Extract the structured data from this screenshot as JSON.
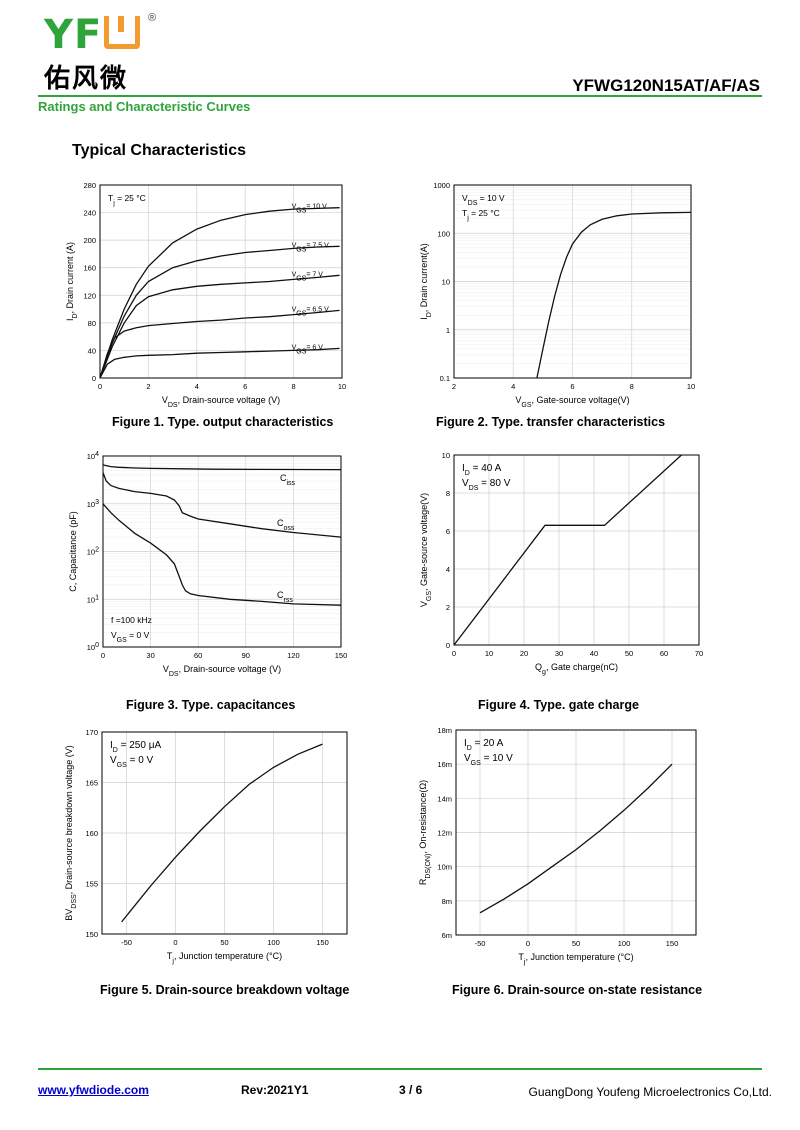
{
  "header": {
    "logo_text": "YFW",
    "logo_cn": "佑风微",
    "registered": "®",
    "part_number": "YFWG120N15AT/AF/AS",
    "subtitle": "Ratings and Characteristic Curves",
    "section_title": "Typical Characteristics"
  },
  "colors": {
    "brand_green": "#2fa43a",
    "brand_orange": "#f29a2e",
    "link_blue": "#0000cc"
  },
  "captions": {
    "fig1": "Figure 1. Type. output characteristics",
    "fig2": "Figure 2. Type. transfer characteristics",
    "fig3": "Figure 3. Type. capacitances",
    "fig4": "Figure 4. Type. gate charge",
    "fig5": "Figure 5. Drain-source breakdown voltage",
    "fig6": "Figure 6. Drain-source on-state resistance"
  },
  "footer": {
    "url": "www.yfwdiode.com",
    "rev": "Rev:2021Y1",
    "page": "3 / 6",
    "company": "GuangDong Youfeng Microelectronics Co,Ltd."
  },
  "chart_data": [
    {
      "id": "fig1",
      "type": "line",
      "xlabel": "V_DS, Drain-source voltage (V)",
      "ylabel": "I_D, Drain current (A)",
      "xlim": [
        0,
        10
      ],
      "ylim": [
        0,
        280
      ],
      "xticks": [
        "0",
        "2",
        "4",
        "6",
        "8",
        "10"
      ],
      "yticks": [
        "0",
        "40",
        "80",
        "120",
        "160",
        "200",
        "240",
        "280"
      ],
      "annotation": "Tj = 25 °C",
      "series": [
        {
          "name": "VGS= 10 V",
          "x": [
            0,
            0.5,
            1,
            1.5,
            2,
            3,
            4,
            5,
            6,
            7,
            8,
            9,
            9.9
          ],
          "y": [
            0,
            55,
            100,
            136,
            162,
            196,
            216,
            229,
            237,
            242,
            245,
            246,
            247
          ]
        },
        {
          "name": "VGS= 7.5 V",
          "x": [
            0,
            0.5,
            1,
            1.5,
            2,
            3,
            4,
            5,
            6,
            7,
            8,
            9,
            9.9
          ],
          "y": [
            0,
            50,
            90,
            120,
            140,
            160,
            170,
            177,
            182,
            185,
            188,
            190,
            191
          ]
        },
        {
          "name": "VGS= 7 V",
          "x": [
            0,
            0.5,
            1,
            1.5,
            2,
            3,
            4,
            5,
            6,
            7,
            8,
            9,
            9.9
          ],
          "y": [
            0,
            45,
            80,
            105,
            118,
            128,
            133,
            136,
            138,
            140,
            143,
            146,
            149
          ]
        },
        {
          "name": "VGS= 6.5 V",
          "x": [
            0,
            0.3,
            0.6,
            1,
            1.5,
            2,
            3,
            4,
            5,
            6,
            7,
            8,
            9,
            9.9
          ],
          "y": [
            0,
            35,
            58,
            68,
            73,
            76,
            79,
            82,
            84,
            87,
            89,
            92,
            95,
            98
          ]
        },
        {
          "name": "VGS= 6 V",
          "x": [
            0,
            0.3,
            0.6,
            1,
            1.5,
            2,
            3,
            4,
            5,
            6,
            7,
            8,
            9,
            9.9
          ],
          "y": [
            0,
            20,
            27,
            30,
            32,
            33,
            34,
            36,
            37,
            38,
            39,
            40,
            41,
            43
          ]
        }
      ]
    },
    {
      "id": "fig2",
      "type": "line",
      "yscale": "log",
      "xlabel": "V_GS, Gate-source voltage(V)",
      "ylabel": "I_D, Drain current(A)",
      "xlim": [
        2,
        10
      ],
      "ylim": [
        0.1,
        1000
      ],
      "xticks": [
        "2",
        "4",
        "6",
        "8",
        "10"
      ],
      "yticks": [
        "0.1",
        "1",
        "10",
        "100",
        "1000"
      ],
      "annotation": [
        "VDS = 10 V",
        "Tj = 25 °C"
      ],
      "series": [
        {
          "name": "",
          "x": [
            4.8,
            4.9,
            5,
            5.2,
            5.4,
            5.6,
            5.8,
            6,
            6.3,
            6.6,
            7,
            7.5,
            8,
            9,
            10
          ],
          "y": [
            0.1,
            0.2,
            0.4,
            1.5,
            5,
            14,
            32,
            60,
            105,
            150,
            195,
            230,
            250,
            265,
            270
          ]
        }
      ]
    },
    {
      "id": "fig3",
      "type": "line",
      "yscale": "log",
      "xlabel": "V_DS, Drain-source voltage (V)",
      "ylabel": "C, Capacitance (pF)",
      "xlim": [
        0,
        150
      ],
      "ylim": [
        1,
        10000
      ],
      "xticks": [
        "0",
        "30",
        "60",
        "90",
        "120",
        "150"
      ],
      "yticks": [
        "10^0",
        "10^1",
        "10^2",
        "10^3",
        "10^4"
      ],
      "annotation": [
        "f =100 kHz",
        "VGS = 0 V"
      ],
      "series": [
        {
          "name": "Ciss",
          "x": [
            0,
            5,
            10,
            20,
            30,
            50,
            70,
            100,
            150
          ],
          "y": [
            6500,
            6000,
            5800,
            5600,
            5500,
            5400,
            5300,
            5250,
            5200
          ]
        },
        {
          "name": "Coss",
          "x": [
            0,
            2,
            5,
            10,
            20,
            30,
            40,
            45,
            48,
            50,
            55,
            60,
            80,
            100,
            120,
            150
          ],
          "y": [
            4500,
            3000,
            2400,
            2100,
            1800,
            1650,
            1450,
            1200,
            900,
            650,
            550,
            480,
            380,
            300,
            250,
            200
          ]
        },
        {
          "name": "Crss",
          "x": [
            0,
            5,
            10,
            15,
            20,
            30,
            40,
            45,
            48,
            50,
            52,
            55,
            60,
            80,
            100,
            120,
            150
          ],
          "y": [
            1000,
            650,
            450,
            330,
            240,
            150,
            85,
            55,
            30,
            20,
            15,
            13,
            12,
            10,
            9,
            8,
            7.5
          ]
        }
      ]
    },
    {
      "id": "fig4",
      "type": "line",
      "xlabel": "Q_g, Gate charge(nC)",
      "ylabel": "V_GS, Gate-source voltage(V)",
      "xlim": [
        0,
        70
      ],
      "ylim": [
        0,
        10
      ],
      "xticks": [
        "0",
        "10",
        "20",
        "30",
        "40",
        "50",
        "60",
        "70"
      ],
      "yticks": [
        "0",
        "2",
        "4",
        "6",
        "8",
        "10"
      ],
      "annotation": [
        "ID = 40 A",
        "VDS = 80 V"
      ],
      "series": [
        {
          "name": "",
          "x": [
            0,
            26,
            43,
            65
          ],
          "y": [
            0,
            6.3,
            6.3,
            10
          ]
        }
      ]
    },
    {
      "id": "fig5",
      "type": "line",
      "xlabel": "T_j, Junction temperature (°C)",
      "ylabel": "BV_DSS, Drain-source breakdown voltage (V)",
      "xlim": [
        -75,
        175
      ],
      "ylim": [
        150,
        170
      ],
      "xticks": [
        "-50",
        "0",
        "50",
        "100",
        "150"
      ],
      "yticks": [
        "150",
        "155",
        "160",
        "165",
        "170"
      ],
      "annotation": [
        "ID = 250 μA",
        "VGS = 0 V"
      ],
      "series": [
        {
          "name": "",
          "x": [
            -55,
            -25,
            0,
            25,
            50,
            75,
            100,
            125,
            150
          ],
          "y": [
            151.2,
            154.8,
            157.6,
            160.2,
            162.6,
            164.8,
            166.5,
            167.8,
            168.8
          ]
        }
      ]
    },
    {
      "id": "fig6",
      "type": "line",
      "xlabel": "T_j, Junction temperature (°C)",
      "ylabel": "R_DS(ON), On-resistance(Ω)",
      "xlim": [
        -75,
        175
      ],
      "ylim": [
        0.006,
        0.018
      ],
      "xticks": [
        "-50",
        "0",
        "50",
        "100",
        "150"
      ],
      "yticks": [
        "6m",
        "8m",
        "10m",
        "12m",
        "14m",
        "16m",
        "18m"
      ],
      "annotation": [
        "ID = 20 A",
        "VGS = 10 V"
      ],
      "series": [
        {
          "name": "",
          "x": [
            -50,
            -25,
            0,
            25,
            50,
            75,
            100,
            125,
            150
          ],
          "y": [
            0.0073,
            0.0081,
            0.009,
            0.01,
            0.011,
            0.0121,
            0.0133,
            0.0146,
            0.016
          ]
        }
      ]
    }
  ]
}
